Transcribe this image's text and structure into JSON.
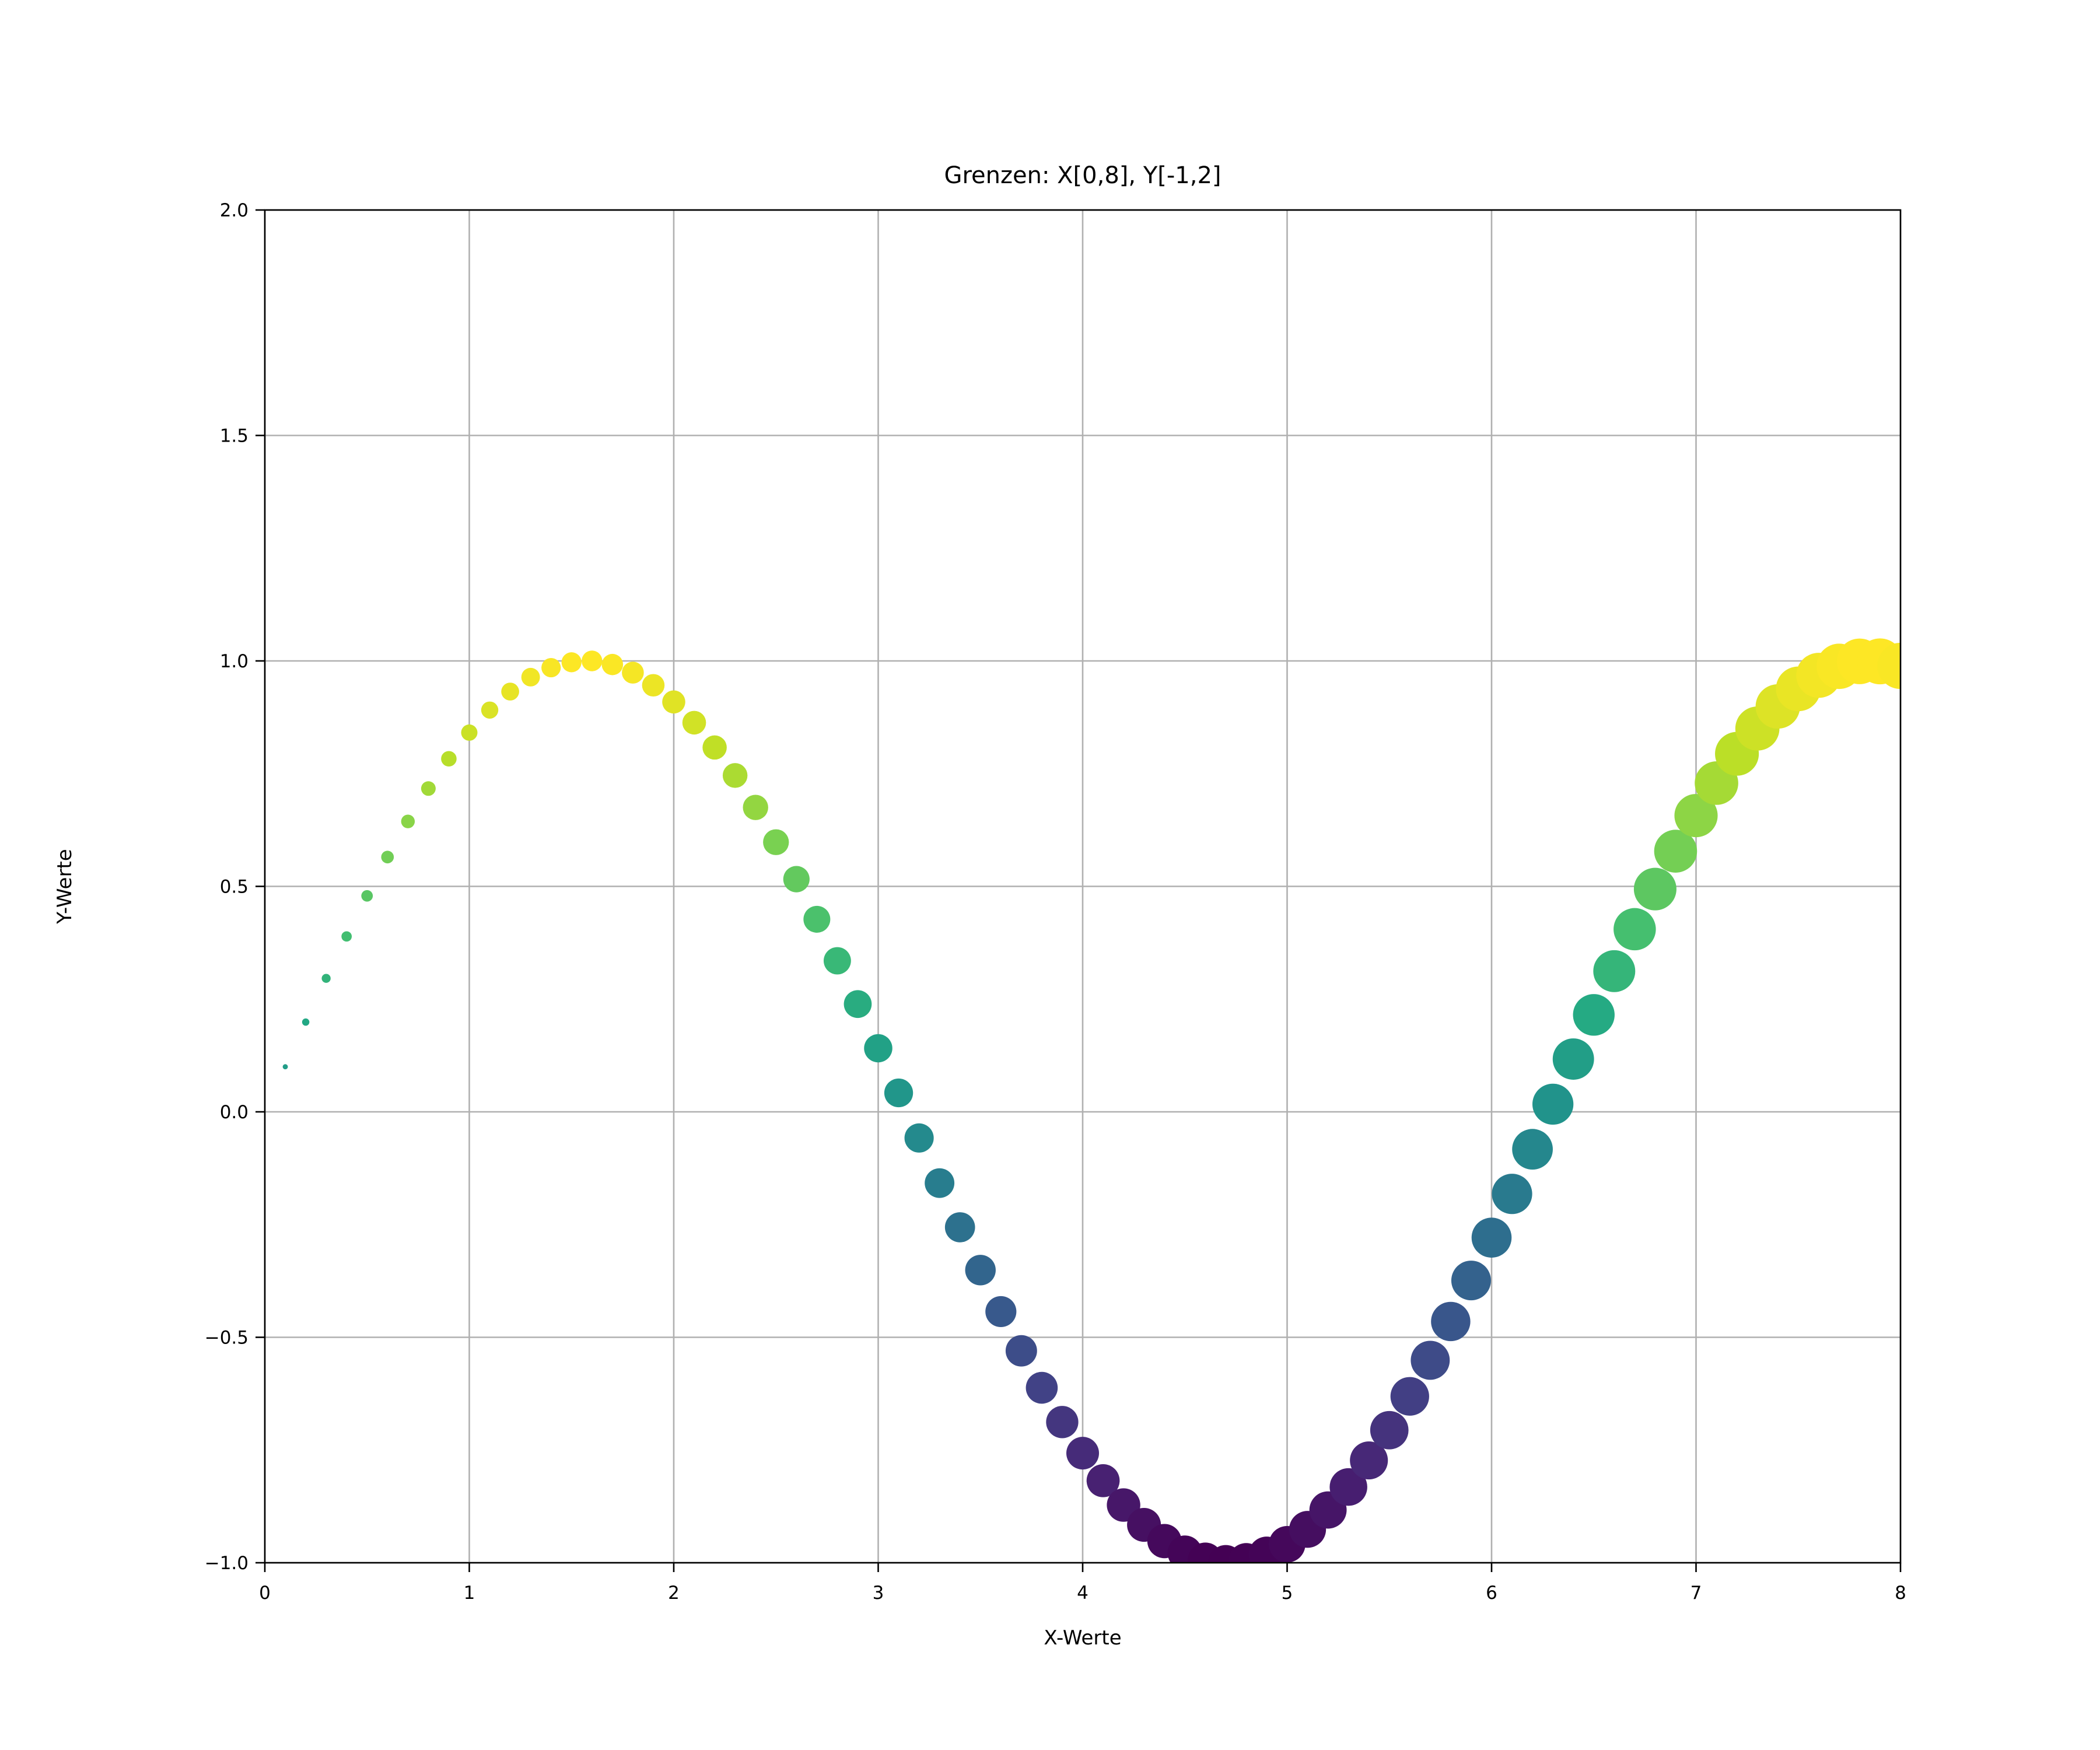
{
  "chart_data": {
    "type": "scatter",
    "title": "Grenzen: X[0,8], Y[-1,2]",
    "xlabel": "X-Werte",
    "ylabel": "Y-Werte",
    "xlim": [
      0,
      8
    ],
    "ylim": [
      -1,
      2
    ],
    "xticks": [
      0,
      1,
      2,
      3,
      4,
      5,
      6,
      7,
      8
    ],
    "xtick_labels": [
      "0",
      "1",
      "2",
      "3",
      "4",
      "5",
      "6",
      "7",
      "8"
    ],
    "yticks": [
      -1.0,
      -0.5,
      0.0,
      0.5,
      1.0,
      1.5,
      2.0
    ],
    "ytick_labels": [
      "−1.0",
      "−0.5",
      "0.0",
      "0.5",
      "1.0",
      "1.5",
      "2.0"
    ],
    "grid": true,
    "colormap": "viridis",
    "color_encodes": "y",
    "size_encodes": "x",
    "function_shown": "y = sin(x)",
    "x": [
      0.1,
      0.2,
      0.3,
      0.4,
      0.5,
      0.6,
      0.7,
      0.8,
      0.9,
      1.0,
      1.1,
      1.2,
      1.3,
      1.4,
      1.5,
      1.6,
      1.7,
      1.8,
      1.9,
      2.0,
      2.1,
      2.2,
      2.3,
      2.4,
      2.5,
      2.6,
      2.7,
      2.8,
      2.9,
      3.0,
      3.1,
      3.2,
      3.3,
      3.4,
      3.5,
      3.6,
      3.7,
      3.8,
      3.9,
      4.0,
      4.1,
      4.2,
      4.3,
      4.4,
      4.5,
      4.6,
      4.7,
      4.8,
      4.9,
      5.0,
      5.1,
      5.2,
      5.3,
      5.4,
      5.5,
      5.6,
      5.7,
      5.8,
      5.9,
      6.0,
      6.1,
      6.2,
      6.3,
      6.4,
      6.5,
      6.6,
      6.7,
      6.8,
      6.9,
      7.0,
      7.1,
      7.2,
      7.3,
      7.4,
      7.5,
      7.6,
      7.7,
      7.8,
      7.9,
      8.0
    ],
    "y": [
      0.1,
      0.199,
      0.296,
      0.389,
      0.479,
      0.565,
      0.644,
      0.717,
      0.783,
      0.841,
      0.891,
      0.932,
      0.964,
      0.985,
      0.997,
      1.0,
      0.992,
      0.974,
      0.946,
      0.909,
      0.863,
      0.808,
      0.746,
      0.675,
      0.598,
      0.516,
      0.427,
      0.335,
      0.239,
      0.141,
      0.042,
      -0.058,
      -0.158,
      -0.256,
      -0.351,
      -0.443,
      -0.53,
      -0.612,
      -0.688,
      -0.757,
      -0.818,
      -0.872,
      -0.916,
      -0.952,
      -0.978,
      -0.994,
      -1.0,
      -0.996,
      -0.982,
      -0.959,
      -0.926,
      -0.883,
      -0.832,
      -0.773,
      -0.706,
      -0.631,
      -0.551,
      -0.465,
      -0.374,
      -0.279,
      -0.182,
      -0.083,
      0.017,
      0.117,
      0.215,
      0.312,
      0.405,
      0.494,
      0.578,
      0.657,
      0.729,
      0.794,
      0.85,
      0.899,
      0.938,
      0.968,
      0.988,
      0.999,
      0.999,
      0.989
    ]
  }
}
